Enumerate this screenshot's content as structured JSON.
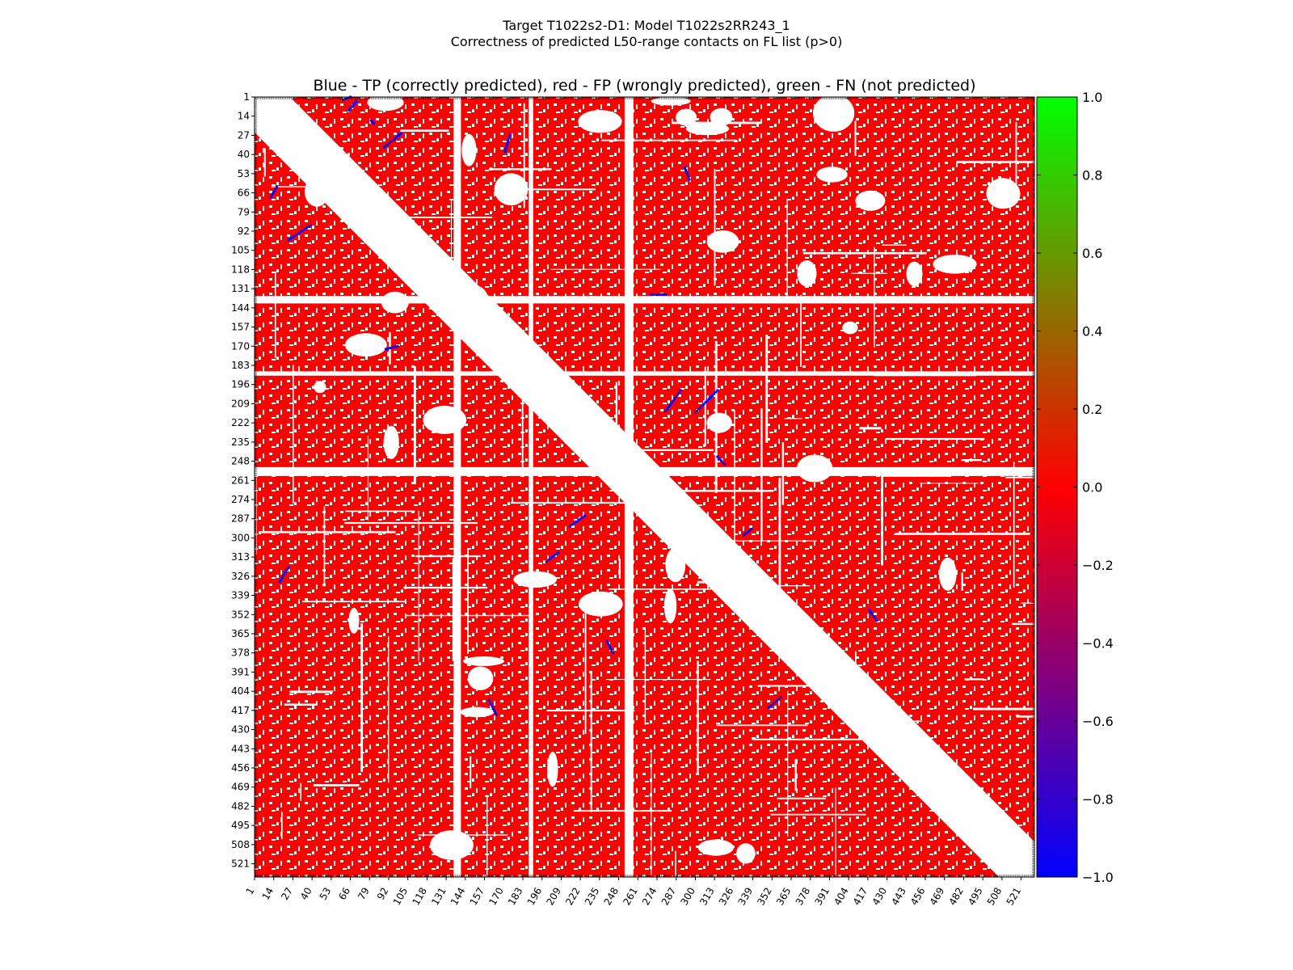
{
  "chart_data": {
    "type": "heatmap",
    "title": "Target T1022s2-D1: Model T1022s2RR243_1",
    "subtitle": "Correctness of predicted L50-range contacts on FL list (p>0)",
    "plot_title": "Blue - TP (correctly predicted), red - FP (wrongly predicted), green - FN (not predicted)",
    "residue_range": [
      1,
      530
    ],
    "x_ticks": [
      1,
      14,
      27,
      40,
      53,
      66,
      79,
      92,
      105,
      118,
      131,
      144,
      157,
      170,
      183,
      196,
      209,
      222,
      235,
      248,
      261,
      274,
      287,
      300,
      313,
      326,
      339,
      352,
      365,
      378,
      391,
      404,
      417,
      430,
      443,
      456,
      469,
      482,
      495,
      508,
      521
    ],
    "y_ticks": [
      1,
      14,
      27,
      40,
      53,
      66,
      79,
      92,
      105,
      118,
      131,
      144,
      157,
      170,
      183,
      196,
      209,
      222,
      235,
      248,
      261,
      274,
      287,
      300,
      313,
      326,
      339,
      352,
      365,
      378,
      391,
      404,
      417,
      430,
      443,
      456,
      469,
      482,
      495,
      508,
      521
    ],
    "gap_residues": [
      [
        136,
        141
      ],
      [
        187,
        190
      ],
      [
        252,
        258
      ]
    ],
    "colorbar": {
      "min": -1.0,
      "max": 1.0,
      "ticks": [
        "1.0",
        "0.8",
        "0.6",
        "0.4",
        "0.2",
        "0.0",
        "−0.2",
        "−0.4",
        "−0.6",
        "−0.8",
        "−1.0"
      ],
      "tick_values": [
        1.0,
        0.8,
        0.6,
        0.4,
        0.2,
        0.0,
        -0.2,
        -0.4,
        -0.6,
        -0.8,
        -1.0
      ],
      "colors": [
        "#00ff00",
        "#ff0000",
        "#0000ff"
      ]
    },
    "legend": [
      {
        "label": "TP",
        "color": "#0000ff"
      },
      {
        "label": "FP",
        "color": "#ff0000"
      },
      {
        "label": "FN",
        "color": "#00ff00"
      }
    ],
    "tp_contact_segments": [
      [
        [
          61,
          3
        ],
        [
          66,
          1
        ]
      ],
      [
        [
          16,
          62
        ],
        [
          12,
          69
        ]
      ],
      [
        [
          39,
          88
        ],
        [
          24,
          98
        ]
      ],
      [
        [
          70,
          4
        ],
        [
          65,
          10
        ]
      ],
      [
        [
          80,
          17
        ],
        [
          82,
          19
        ]
      ],
      [
        [
          100,
          26
        ],
        [
          89,
          35
        ]
      ],
      [
        [
          174,
          27
        ],
        [
          171,
          38
        ]
      ],
      [
        [
          293,
          49
        ],
        [
          296,
          57
        ]
      ],
      [
        [
          199,
          316
        ],
        [
          207,
          310
        ]
      ],
      [
        [
          215,
          292
        ],
        [
          225,
          285
        ]
      ],
      [
        [
          240,
          370
        ],
        [
          244,
          378
        ]
      ],
      [
        [
          300,
          215
        ],
        [
          315,
          200
        ]
      ],
      [
        [
          350,
          415
        ],
        [
          358,
          408
        ]
      ],
      [
        [
          333,
          298
        ],
        [
          338,
          294
        ]
      ],
      [
        [
          418,
          349
        ],
        [
          423,
          356
        ]
      ],
      [
        [
          290,
          200
        ],
        [
          280,
          214
        ]
      ],
      [
        [
          315,
          245
        ],
        [
          320,
          250
        ]
      ],
      [
        [
          270,
          135
        ],
        [
          280,
          135
        ]
      ],
      [
        [
          160,
          410
        ],
        [
          165,
          420
        ]
      ],
      [
        [
          98,
          170
        ],
        [
          90,
          172
        ]
      ],
      [
        [
          24,
          320
        ],
        [
          18,
          330
        ]
      ]
    ]
  }
}
